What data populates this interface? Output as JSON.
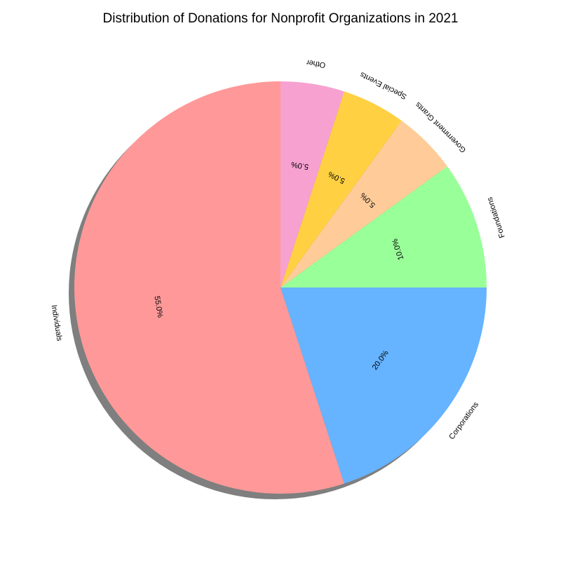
{
  "chart_data": {
    "type": "pie",
    "title": "Distribution of Donations for Nonprofit Organizations in 2021",
    "categories": [
      "Individuals",
      "Corporations",
      "Foundations",
      "Government Grants",
      "Special Events",
      "Other"
    ],
    "values": [
      55,
      20,
      10,
      5,
      5,
      5
    ],
    "percent_labels": [
      "55.0%",
      "20.0%",
      "10.0%",
      "5.0%",
      "5.0%",
      "5.0%"
    ],
    "colors": [
      "#ff9999",
      "#66b3ff",
      "#99ff99",
      "#ffcc99",
      "#ffd042",
      "#f7a1d1"
    ],
    "shadow": true,
    "legend": "none"
  }
}
